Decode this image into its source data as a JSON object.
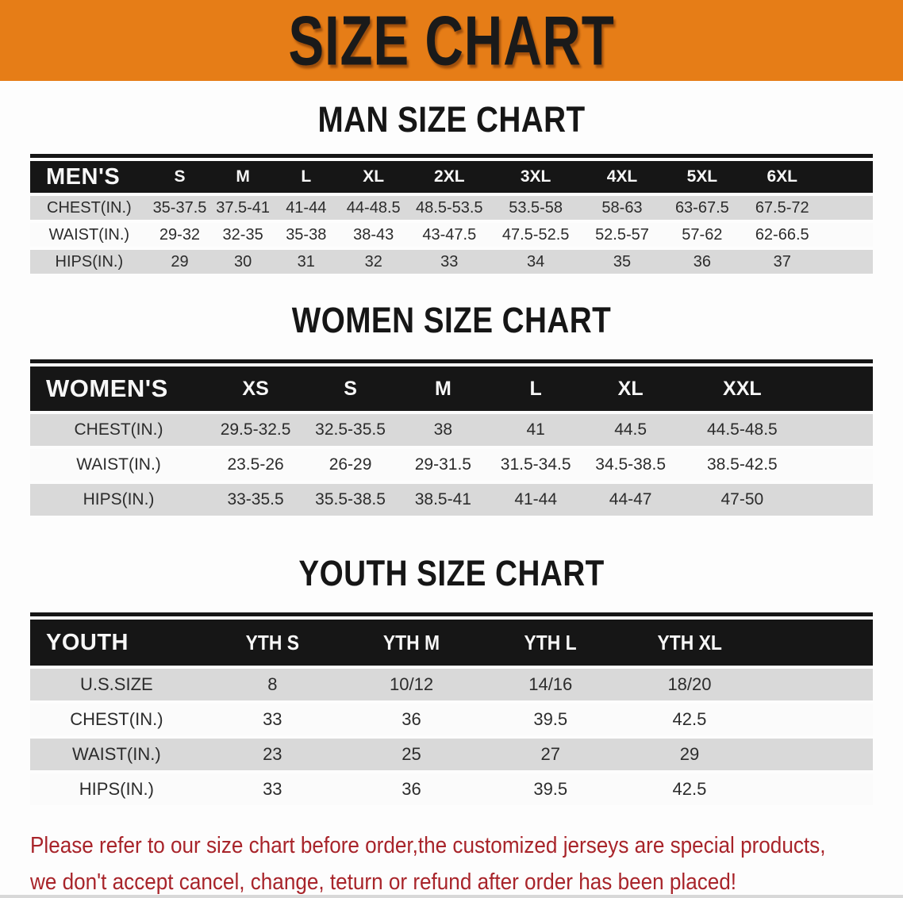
{
  "banner": {
    "title": "SIZE CHART"
  },
  "colors": {
    "banner_bg": "#E67D17",
    "banner_text": "#1A1A1A",
    "header_bg": "#161616",
    "header_text": "#F7F7F7",
    "row_shaded": "#D9D9D9",
    "row_plain": "#FBFBFB",
    "table_text": "#2C2C2C",
    "heading_text": "#161616",
    "disclaimer_text": "#A8242A"
  },
  "sections": [
    {
      "id": "men",
      "heading": "MAN SIZE CHART",
      "table": {
        "label": "MEN'S",
        "columns": [
          "S",
          "M",
          "L",
          "XL",
          "2XL",
          "3XL",
          "4XL",
          "5XL",
          "6XL"
        ],
        "rows": [
          {
            "label": "CHEST(IN.)",
            "values": [
              "35-37.5",
              "37.5-41",
              "41-44",
              "44-48.5",
              "48.5-53.5",
              "53.5-58",
              "58-63",
              "63-67.5",
              "67.5-72"
            ]
          },
          {
            "label": "WAIST(IN.)",
            "values": [
              "29-32",
              "32-35",
              "35-38",
              "38-43",
              "43-47.5",
              "47.5-52.5",
              "52.5-57",
              "57-62",
              "62-66.5"
            ]
          },
          {
            "label": "HIPS(IN.)",
            "values": [
              "29",
              "30",
              "31",
              "32",
              "33",
              "34",
              "35",
              "36",
              "37"
            ]
          }
        ]
      }
    },
    {
      "id": "women",
      "heading": "WOMEN SIZE CHART",
      "table": {
        "label": "WOMEN'S",
        "columns": [
          "XS",
          "S",
          "M",
          "L",
          "XL",
          "XXL"
        ],
        "rows": [
          {
            "label": "CHEST(IN.)",
            "values": [
              "29.5-32.5",
              "32.5-35.5",
              "38",
              "41",
              "44.5",
              "44.5-48.5"
            ]
          },
          {
            "label": "WAIST(IN.)",
            "values": [
              "23.5-26",
              "26-29",
              "29-31.5",
              "31.5-34.5",
              "34.5-38.5",
              "38.5-42.5"
            ]
          },
          {
            "label": "HIPS(IN.)",
            "values": [
              "33-35.5",
              "35.5-38.5",
              "38.5-41",
              "41-44",
              "44-47",
              "47-50"
            ]
          }
        ]
      }
    },
    {
      "id": "youth",
      "heading": "YOUTH SIZE CHART",
      "table": {
        "label": "YOUTH",
        "columns": [
          "YTH S",
          "YTH M",
          "YTH L",
          "YTH XL"
        ],
        "rows": [
          {
            "label": "U.S.SIZE",
            "values": [
              "8",
              "10/12",
              "14/16",
              "18/20"
            ]
          },
          {
            "label": "CHEST(IN.)",
            "values": [
              "33",
              "36",
              "39.5",
              "42.5"
            ]
          },
          {
            "label": "WAIST(IN.)",
            "values": [
              "23",
              "25",
              "27",
              "29"
            ]
          },
          {
            "label": "HIPS(IN.)",
            "values": [
              "33",
              "36",
              "39.5",
              "42.5"
            ]
          }
        ]
      }
    }
  ],
  "disclaimer": {
    "line1": "Please refer to our size chart before order,the customized jerseys are special products,",
    "line2": "we don't accept cancel, change, teturn or refund after order has been placed!"
  }
}
